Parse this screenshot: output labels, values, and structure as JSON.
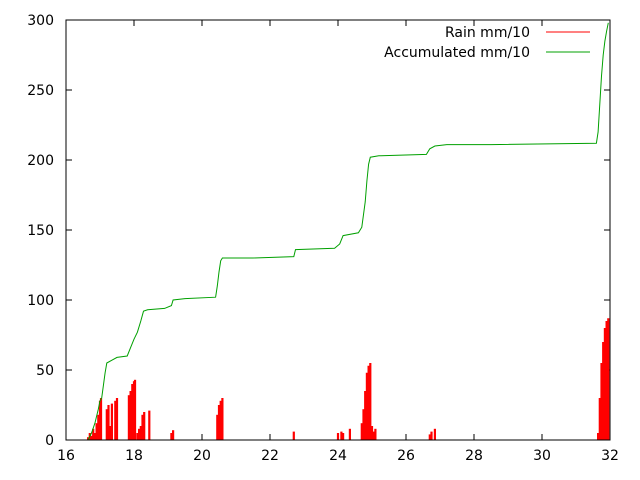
{
  "chart_data": {
    "type": "line",
    "title": "",
    "xlabel": "",
    "ylabel": "",
    "xlim": [
      16,
      32
    ],
    "ylim": [
      0,
      300
    ],
    "x_ticks": [
      "16",
      "18",
      "20",
      "22",
      "24",
      "26",
      "28",
      "30",
      "32"
    ],
    "y_ticks": [
      "0",
      "50",
      "100",
      "150",
      "200",
      "250",
      "300"
    ],
    "grid": false,
    "legend_position": "top-right",
    "series": [
      {
        "name": "Rain mm/10",
        "color": "#ff0000",
        "style": "impulses",
        "points": [
          [
            16.65,
            2
          ],
          [
            16.7,
            5
          ],
          [
            16.75,
            3
          ],
          [
            16.8,
            8
          ],
          [
            16.85,
            5
          ],
          [
            16.9,
            12
          ],
          [
            16.95,
            18
          ],
          [
            17.0,
            28
          ],
          [
            17.03,
            30
          ],
          [
            17.2,
            22
          ],
          [
            17.25,
            25
          ],
          [
            17.3,
            10
          ],
          [
            17.35,
            26
          ],
          [
            17.45,
            28
          ],
          [
            17.5,
            30
          ],
          [
            17.85,
            32
          ],
          [
            17.9,
            35
          ],
          [
            17.95,
            40
          ],
          [
            18.0,
            42
          ],
          [
            18.03,
            43
          ],
          [
            18.1,
            5
          ],
          [
            18.15,
            8
          ],
          [
            18.2,
            10
          ],
          [
            18.25,
            18
          ],
          [
            18.3,
            20
          ],
          [
            18.45,
            21
          ],
          [
            19.1,
            5
          ],
          [
            19.15,
            7
          ],
          [
            20.45,
            18
          ],
          [
            20.5,
            25
          ],
          [
            20.55,
            28
          ],
          [
            20.6,
            30
          ],
          [
            22.7,
            6
          ],
          [
            24.0,
            5
          ],
          [
            24.1,
            6
          ],
          [
            24.15,
            5
          ],
          [
            24.35,
            8
          ],
          [
            24.7,
            12
          ],
          [
            24.75,
            22
          ],
          [
            24.8,
            35
          ],
          [
            24.85,
            48
          ],
          [
            24.9,
            53
          ],
          [
            24.95,
            55
          ],
          [
            25.0,
            10
          ],
          [
            25.05,
            6
          ],
          [
            25.1,
            8
          ],
          [
            26.7,
            4
          ],
          [
            26.75,
            6
          ],
          [
            26.85,
            8
          ],
          [
            31.65,
            5
          ],
          [
            31.7,
            30
          ],
          [
            31.75,
            55
          ],
          [
            31.8,
            70
          ],
          [
            31.85,
            80
          ],
          [
            31.9,
            85
          ],
          [
            31.95,
            87
          ]
        ]
      },
      {
        "name": "Accumulated mm/10",
        "color": "#00a000",
        "style": "line",
        "points": [
          [
            16.65,
            0
          ],
          [
            16.75,
            5
          ],
          [
            16.85,
            12
          ],
          [
            16.95,
            22
          ],
          [
            17.0,
            28
          ],
          [
            17.05,
            30
          ],
          [
            17.15,
            48
          ],
          [
            17.2,
            55
          ],
          [
            17.35,
            57
          ],
          [
            17.5,
            59
          ],
          [
            17.8,
            60
          ],
          [
            17.9,
            66
          ],
          [
            18.0,
            72
          ],
          [
            18.1,
            77
          ],
          [
            18.2,
            85
          ],
          [
            18.28,
            92
          ],
          [
            18.4,
            93
          ],
          [
            18.9,
            94
          ],
          [
            19.1,
            96
          ],
          [
            19.15,
            100
          ],
          [
            19.5,
            101
          ],
          [
            20.4,
            102
          ],
          [
            20.45,
            110
          ],
          [
            20.5,
            120
          ],
          [
            20.55,
            128
          ],
          [
            20.6,
            130
          ],
          [
            21.5,
            130
          ],
          [
            22.7,
            131
          ],
          [
            22.75,
            136
          ],
          [
            23.9,
            137
          ],
          [
            24.05,
            140
          ],
          [
            24.15,
            146
          ],
          [
            24.6,
            148
          ],
          [
            24.7,
            152
          ],
          [
            24.8,
            170
          ],
          [
            24.85,
            185
          ],
          [
            24.9,
            197
          ],
          [
            24.95,
            202
          ],
          [
            25.2,
            203
          ],
          [
            26.6,
            204
          ],
          [
            26.7,
            208
          ],
          [
            26.85,
            210
          ],
          [
            27.2,
            211
          ],
          [
            28.5,
            211
          ],
          [
            31.6,
            212
          ],
          [
            31.65,
            220
          ],
          [
            31.7,
            240
          ],
          [
            31.75,
            260
          ],
          [
            31.8,
            275
          ],
          [
            31.85,
            285
          ],
          [
            31.9,
            292
          ],
          [
            31.95,
            298
          ]
        ]
      }
    ]
  }
}
